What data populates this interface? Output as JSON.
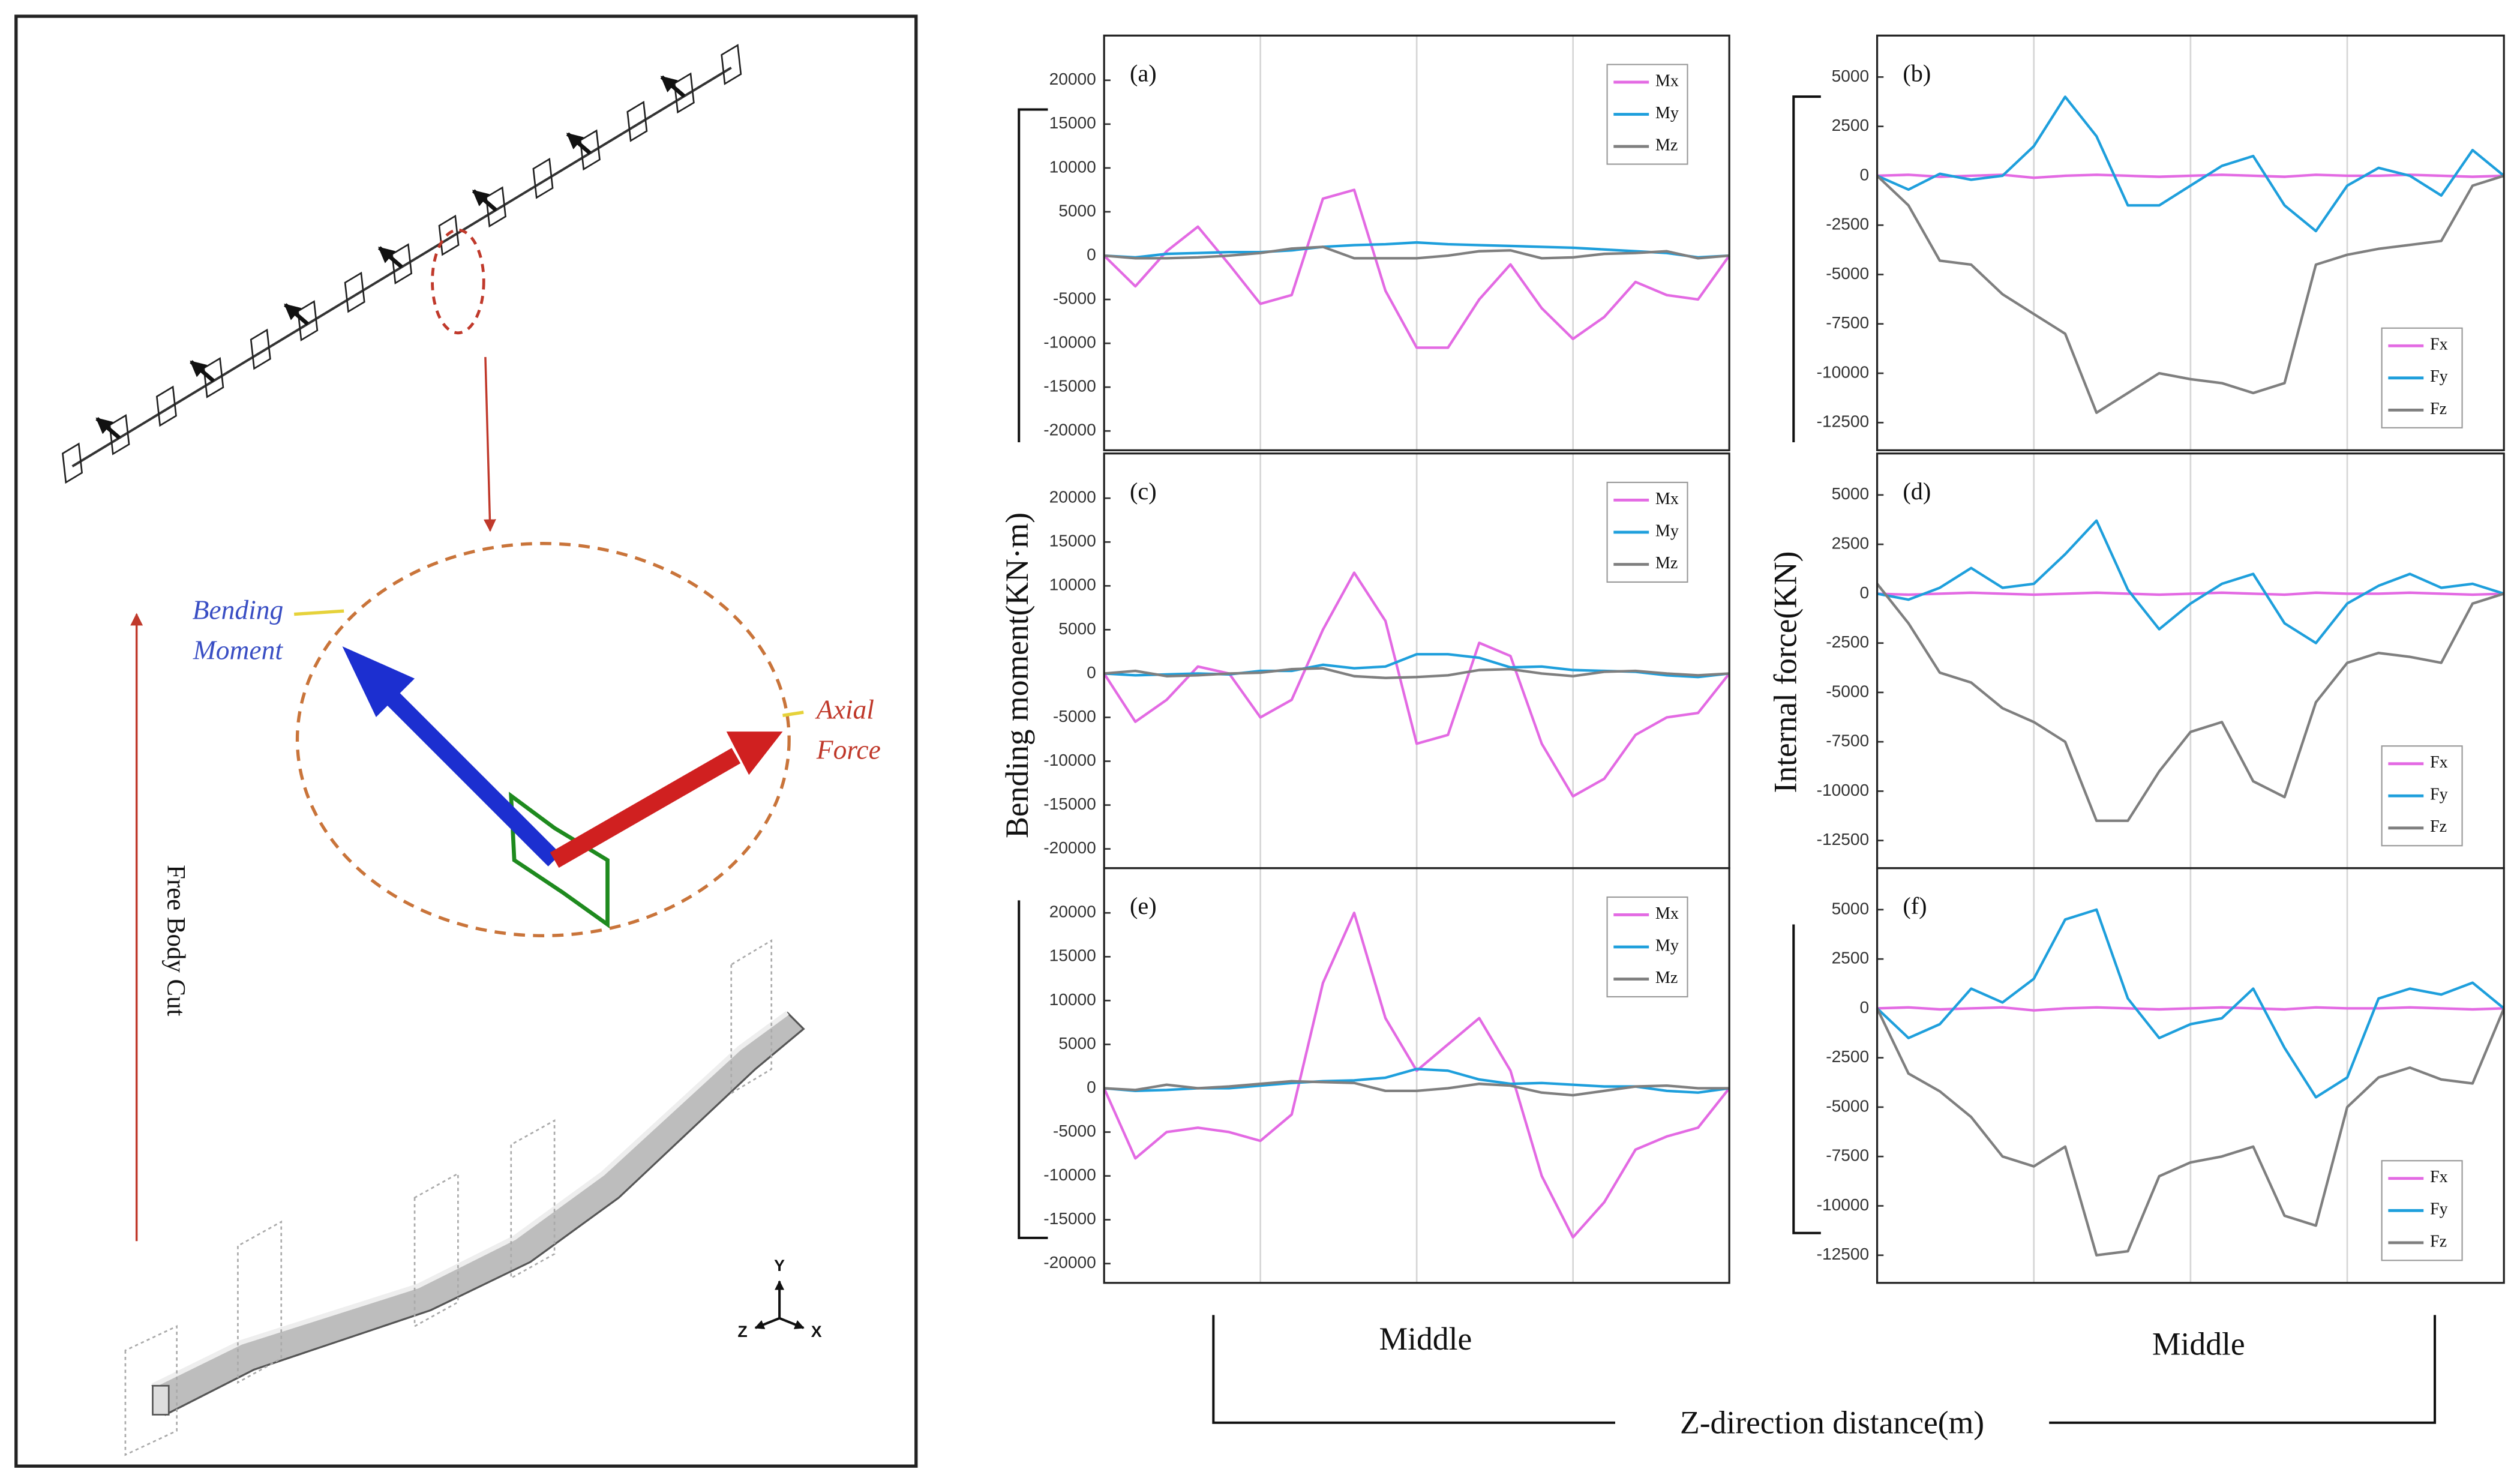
{
  "chart_data": [
    {
      "type": "line",
      "title": "(a)",
      "x": [
        0,
        5,
        10,
        15,
        20,
        25,
        30,
        35,
        40,
        45,
        50,
        55,
        60,
        65,
        70,
        75,
        80,
        85,
        90,
        95,
        100
      ],
      "xlim": [
        0,
        100
      ],
      "xticks": [
        25,
        50,
        75
      ],
      "ylim": [
        -22200,
        25100
      ],
      "yticks": [
        -20000,
        -15000,
        -10000,
        -5000,
        0,
        5000,
        10000,
        15000,
        20000
      ],
      "grid": true,
      "legend": "upper right",
      "series": [
        {
          "name": "Mx",
          "color": "#e36ae3",
          "values": [
            0,
            -3500,
            500,
            3300,
            -1000,
            -5500,
            -4500,
            6500,
            7500,
            -4000,
            -10500,
            -10500,
            -5000,
            -1000,
            -6000,
            -9500,
            -7000,
            -3000,
            -4500,
            -5000,
            0
          ]
        },
        {
          "name": "My",
          "color": "#1e9fdc",
          "values": [
            0,
            -200,
            200,
            300,
            400,
            400,
            600,
            1000,
            1200,
            1300,
            1500,
            1300,
            1200,
            1100,
            1000,
            900,
            700,
            500,
            300,
            -200,
            0
          ]
        },
        {
          "name": "Mz",
          "color": "#7f7f7f",
          "values": [
            0,
            -300,
            -300,
            -200,
            0,
            300,
            800,
            1000,
            -300,
            -300,
            -300,
            0,
            500,
            600,
            -300,
            -200,
            200,
            300,
            500,
            -300,
            0
          ]
        }
      ]
    },
    {
      "type": "line",
      "title": "(b)",
      "x": [
        0,
        5,
        10,
        15,
        20,
        25,
        30,
        35,
        40,
        45,
        50,
        55,
        60,
        65,
        70,
        75,
        80,
        85,
        90,
        95,
        100
      ],
      "xlim": [
        0,
        100
      ],
      "xticks": [
        25,
        50,
        75
      ],
      "ylim": [
        -13900,
        7100
      ],
      "yticks": [
        -12500,
        -10000,
        -7500,
        -5000,
        -2500,
        0,
        2500,
        5000
      ],
      "grid": true,
      "legend": "lower right",
      "series": [
        {
          "name": "Fx",
          "color": "#e36ae3",
          "values": [
            0,
            50,
            -50,
            0,
            50,
            -100,
            0,
            50,
            0,
            -50,
            0,
            50,
            0,
            -50,
            50,
            0,
            0,
            50,
            0,
            -50,
            0
          ]
        },
        {
          "name": "Fy",
          "color": "#1e9fdc",
          "values": [
            0,
            -700,
            100,
            -200,
            0,
            1500,
            4000,
            2000,
            -1500,
            -1500,
            -500,
            500,
            1000,
            -1500,
            -2800,
            -500,
            400,
            0,
            -1000,
            1300,
            0
          ]
        },
        {
          "name": "Fz",
          "color": "#7f7f7f",
          "values": [
            0,
            -1500,
            -4300,
            -4500,
            -6000,
            -7000,
            -8000,
            -12000,
            -11000,
            -10000,
            -10300,
            -10500,
            -11000,
            -10500,
            -4500,
            -4000,
            -3700,
            -3500,
            -3300,
            -500,
            0
          ]
        }
      ]
    },
    {
      "type": "line",
      "title": "(c)",
      "x": [
        0,
        5,
        10,
        15,
        20,
        25,
        30,
        35,
        40,
        45,
        50,
        55,
        60,
        65,
        70,
        75,
        80,
        85,
        90,
        95,
        100
      ],
      "xlim": [
        0,
        100
      ],
      "xticks": [
        25,
        50,
        75
      ],
      "ylim": [
        -22200,
        25100
      ],
      "yticks": [
        -20000,
        -15000,
        -10000,
        -5000,
        0,
        5000,
        10000,
        15000,
        20000
      ],
      "grid": true,
      "legend": "upper right",
      "series": [
        {
          "name": "Mx",
          "color": "#e36ae3",
          "values": [
            0,
            -5500,
            -3000,
            800,
            0,
            -5000,
            -3000,
            5000,
            11500,
            6000,
            -8000,
            -7000,
            3500,
            2000,
            -8000,
            -14000,
            -12000,
            -7000,
            -5000,
            -4500,
            0
          ]
        },
        {
          "name": "My",
          "color": "#1e9fdc",
          "values": [
            0,
            -200,
            -100,
            0,
            -100,
            300,
            300,
            1000,
            600,
            800,
            2200,
            2200,
            1800,
            700,
            800,
            400,
            300,
            200,
            -200,
            -400,
            0
          ]
        },
        {
          "name": "Mz",
          "color": "#7f7f7f",
          "values": [
            0,
            300,
            -300,
            -200,
            0,
            100,
            500,
            600,
            -300,
            -500,
            -400,
            -200,
            400,
            500,
            0,
            -300,
            200,
            300,
            0,
            -200,
            0
          ]
        }
      ]
    },
    {
      "type": "line",
      "title": "(d)",
      "x": [
        0,
        5,
        10,
        15,
        20,
        25,
        30,
        35,
        40,
        45,
        50,
        55,
        60,
        65,
        70,
        75,
        80,
        85,
        90,
        95,
        100
      ],
      "xlim": [
        0,
        100
      ],
      "xticks": [
        25,
        50,
        75
      ],
      "ylim": [
        -13900,
        7100
      ],
      "yticks": [
        -12500,
        -10000,
        -7500,
        -5000,
        -2500,
        0,
        2500,
        5000
      ],
      "grid": true,
      "legend": "lower right",
      "series": [
        {
          "name": "Fx",
          "color": "#e36ae3",
          "values": [
            0,
            -50,
            0,
            50,
            0,
            -50,
            0,
            50,
            0,
            -50,
            0,
            50,
            0,
            -50,
            50,
            0,
            0,
            50,
            0,
            -50,
            0
          ]
        },
        {
          "name": "Fy",
          "color": "#1e9fdc",
          "values": [
            0,
            -300,
            300,
            1300,
            300,
            500,
            2000,
            3700,
            200,
            -1800,
            -500,
            500,
            1000,
            -1500,
            -2500,
            -500,
            400,
            1000,
            300,
            500,
            0
          ]
        },
        {
          "name": "Fz",
          "color": "#7f7f7f",
          "values": [
            500,
            -1500,
            -4000,
            -4500,
            -5800,
            -6500,
            -7500,
            -11500,
            -11500,
            -9000,
            -7000,
            -6500,
            -9500,
            -10300,
            -5500,
            -3500,
            -3000,
            -3200,
            -3500,
            -500,
            0
          ]
        }
      ]
    },
    {
      "type": "line",
      "title": "(e)",
      "x": [
        0,
        5,
        10,
        15,
        20,
        25,
        30,
        35,
        40,
        45,
        50,
        55,
        60,
        65,
        70,
        75,
        80,
        85,
        90,
        95,
        100
      ],
      "xlim": [
        0,
        100
      ],
      "xticks": [
        25,
        50,
        75
      ],
      "ylim": [
        -22200,
        25100
      ],
      "yticks": [
        -20000,
        -15000,
        -10000,
        -5000,
        0,
        5000,
        10000,
        15000,
        20000
      ],
      "grid": true,
      "legend": "upper right",
      "series": [
        {
          "name": "Mx",
          "color": "#e36ae3",
          "values": [
            0,
            -8000,
            -5000,
            -4500,
            -5000,
            -6000,
            -3000,
            12000,
            20000,
            8000,
            2000,
            5000,
            8000,
            2000,
            -10000,
            -17000,
            -13000,
            -7000,
            -5500,
            -4500,
            0
          ]
        },
        {
          "name": "My",
          "color": "#1e9fdc",
          "values": [
            0,
            -300,
            -200,
            0,
            0,
            300,
            600,
            800,
            900,
            1200,
            2200,
            2000,
            1000,
            500,
            600,
            400,
            200,
            200,
            -300,
            -500,
            0
          ]
        },
        {
          "name": "Mz",
          "color": "#7f7f7f",
          "values": [
            0,
            -200,
            400,
            0,
            200,
            500,
            800,
            700,
            600,
            -300,
            -300,
            0,
            500,
            300,
            -500,
            -800,
            -300,
            200,
            300,
            0,
            0
          ]
        }
      ]
    },
    {
      "type": "line",
      "title": "(f)",
      "x": [
        0,
        5,
        10,
        15,
        20,
        25,
        30,
        35,
        40,
        45,
        50,
        55,
        60,
        65,
        70,
        75,
        80,
        85,
        90,
        95,
        100
      ],
      "xlim": [
        0,
        100
      ],
      "xticks": [
        25,
        50,
        75
      ],
      "ylim": [
        -13900,
        7100
      ],
      "yticks": [
        -12500,
        -10000,
        -7500,
        -5000,
        -2500,
        0,
        2500,
        5000
      ],
      "grid": true,
      "legend": "lower right",
      "series": [
        {
          "name": "Fx",
          "color": "#e36ae3",
          "values": [
            0,
            50,
            -50,
            0,
            50,
            -100,
            0,
            50,
            0,
            -50,
            0,
            50,
            0,
            -50,
            50,
            0,
            0,
            50,
            0,
            -50,
            0
          ]
        },
        {
          "name": "Fy",
          "color": "#1e9fdc",
          "values": [
            0,
            -1500,
            -800,
            1000,
            300,
            1500,
            4500,
            5000,
            500,
            -1500,
            -800,
            -500,
            1000,
            -2000,
            -4500,
            -3500,
            500,
            1000,
            700,
            1300,
            0
          ]
        },
        {
          "name": "Fz",
          "color": "#7f7f7f",
          "values": [
            0,
            -3300,
            -4200,
            -5500,
            -7500,
            -8000,
            -7000,
            -12500,
            -12300,
            -8500,
            -7800,
            -7500,
            -7000,
            -10500,
            -11000,
            -5000,
            -3500,
            -3000,
            -3600,
            -3800,
            0
          ]
        }
      ]
    }
  ],
  "figure": {
    "left_ylabel": "Bending moment(KN·m)",
    "right_ylabel": "Internal force(KN)",
    "xlabel": "Z-direction distance(m)",
    "middle_labels": [
      "Middle",
      "Middle"
    ]
  },
  "diagram": {
    "bending_label": [
      "Bending",
      "Moment"
    ],
    "axial_label": [
      "Axial",
      "Force"
    ],
    "cut_label": "Free Body Cut",
    "axes": [
      "Y",
      "Z",
      "X"
    ]
  }
}
